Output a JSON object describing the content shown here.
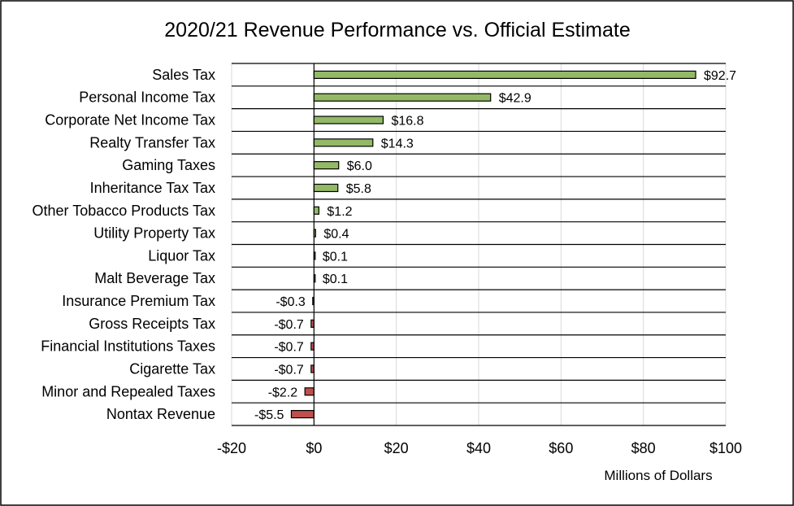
{
  "chart_data": {
    "type": "bar",
    "orientation": "horizontal",
    "title": "2020/21 Revenue Performance vs. Official Estimate",
    "xlabel": "Millions of Dollars",
    "ylabel": "",
    "xlim": [
      -20,
      100
    ],
    "x_ticks": [
      -20,
      0,
      20,
      40,
      60,
      80,
      100
    ],
    "x_tick_labels": [
      "-$20",
      "$0",
      "$20",
      "$40",
      "$60",
      "$80",
      "$100"
    ],
    "categories": [
      "Sales Tax",
      "Personal Income Tax",
      "Corporate Net Income Tax",
      "Realty Transfer Tax",
      "Gaming Taxes",
      "Inheritance Tax Tax",
      "Other Tobacco Products Tax",
      "Utility Property Tax",
      "Liquor Tax",
      "Malt Beverage Tax",
      "Insurance Premium Tax",
      "Gross Receipts Tax",
      "Financial Institutions Taxes",
      "Cigarette Tax",
      "Minor and Repealed Taxes",
      "Nontax Revenue"
    ],
    "values": [
      92.7,
      42.9,
      16.8,
      14.3,
      6.0,
      5.8,
      1.2,
      0.4,
      0.1,
      0.1,
      -0.3,
      -0.7,
      -0.7,
      -0.7,
      -2.2,
      -5.5
    ],
    "data_labels": [
      "$92.7",
      "$42.9",
      "$16.8",
      "$14.3",
      "$6.0",
      "$5.8",
      "$1.2",
      "$0.4",
      "$0.1",
      "$0.1",
      "-$0.3",
      "-$0.7",
      "-$0.7",
      "-$0.7",
      "-$2.2",
      "-$5.5"
    ],
    "colors": {
      "positive": "#93b966",
      "negative": "#c0504d",
      "gridline": "#d9d9d9",
      "border": "#000000"
    },
    "grid": true,
    "legend": "none"
  }
}
